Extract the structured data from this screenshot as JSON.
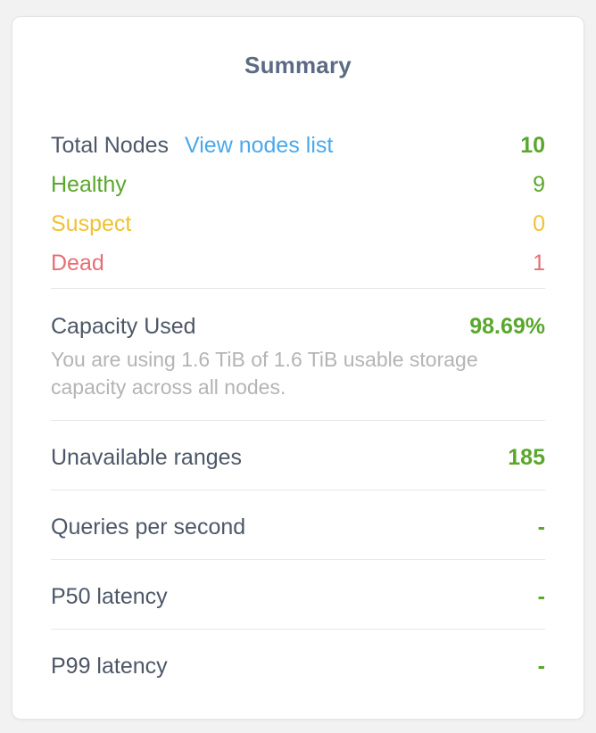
{
  "title": "Summary",
  "colors": {
    "title": "#5c6b84",
    "label": "#4d5768",
    "green": "#5aa72d",
    "yellow": "#f0c132",
    "red": "#e86e76",
    "blue": "#4aa8ec",
    "subtext": "#b4b4b4"
  },
  "nodes": {
    "label": "Total Nodes",
    "link": "View nodes list",
    "value": "10",
    "statuses": [
      {
        "label": "Healthy",
        "value": "9",
        "color": "green"
      },
      {
        "label": "Suspect",
        "value": "0",
        "color": "yellow"
      },
      {
        "label": "Dead",
        "value": "1",
        "color": "red"
      }
    ]
  },
  "capacity": {
    "label": "Capacity Used",
    "value": "98.69%",
    "description": "You are using 1.6 TiB of 1.6 TiB usable storage capacity across all nodes."
  },
  "metrics": [
    {
      "label": "Unavailable ranges",
      "value": "185"
    },
    {
      "label": "Queries per second",
      "value": "-"
    },
    {
      "label": "P50 latency",
      "value": "-"
    },
    {
      "label": "P99 latency",
      "value": "-"
    }
  ]
}
